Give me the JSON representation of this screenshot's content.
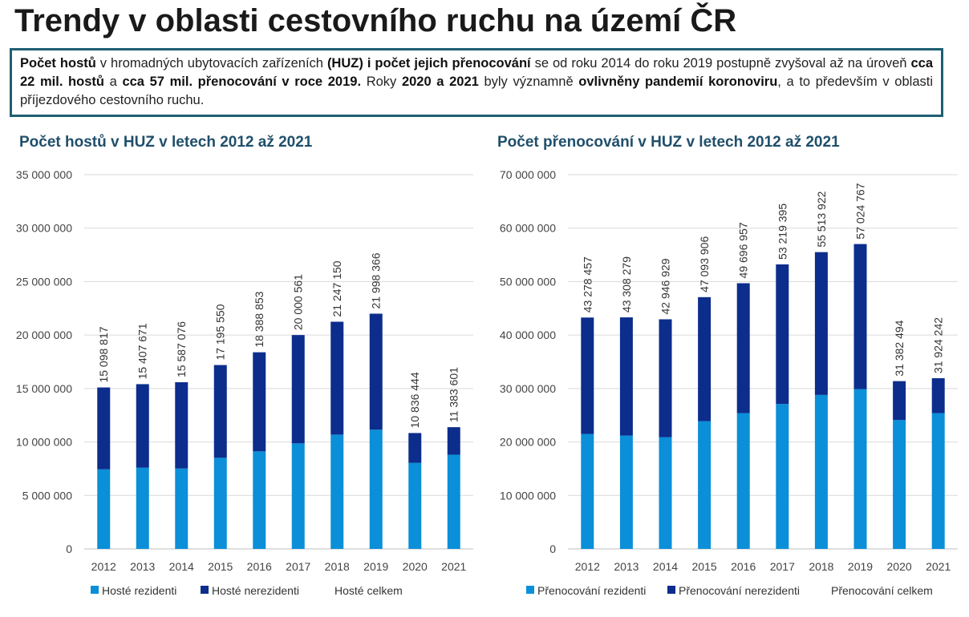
{
  "page": {
    "title": "Trendy v oblasti cestovního ruchu na území ČR",
    "info_segments": [
      {
        "t": "Počet hostů",
        "b": true
      },
      {
        "t": " v hromadných ubytovacích zařízeních ",
        "b": false
      },
      {
        "t": "(HUZ) i počet jejich přenocování",
        "b": true
      },
      {
        "t": " se od roku 2014 do roku 2019 postupně zvyšoval až na úroveň ",
        "b": false
      },
      {
        "t": "cca 22 mil. hostů",
        "b": true
      },
      {
        "t": " a ",
        "b": false
      },
      {
        "t": "cca 57 mil. přenocování v roce 2019.",
        "b": true
      },
      {
        "t": " Roky ",
        "b": false
      },
      {
        "t": "2020 a 2021",
        "b": true
      },
      {
        "t": " byly významně ",
        "b": false
      },
      {
        "t": "ovlivněny pandemií koronoviru",
        "b": true
      },
      {
        "t": ", a to především v oblasti příjezdového cestovního ruchu.",
        "b": false
      }
    ]
  },
  "colors": {
    "resident": "#0a8fd8",
    "nonresident": "#0c2d8c",
    "grid": "#d9d9d9",
    "axis": "#bfbfbf"
  },
  "chart_data": [
    {
      "type": "bar",
      "stacked": true,
      "title": "Počet hostů v HUZ v letech 2012 až 2021",
      "categories": [
        "2012",
        "2013",
        "2014",
        "2015",
        "2016",
        "2017",
        "2018",
        "2019",
        "2020",
        "2021"
      ],
      "series": [
        {
          "name": "Hosté rezidenti",
          "values": [
            7440000,
            7600000,
            7520000,
            8520000,
            9120000,
            9870000,
            10690000,
            11150000,
            8050000,
            8810000
          ]
        },
        {
          "name": "Hosté nerezidenti",
          "values": [
            7658817,
            7807671,
            8067076,
            8675550,
            9268853,
            10130561,
            10557150,
            10848366,
            2786444,
            2573601
          ]
        }
      ],
      "totals_name": "Hosté celkem",
      "totals": [
        15098817,
        15407671,
        15587076,
        17195550,
        18388853,
        20000561,
        21247150,
        21998366,
        10836444,
        11383601
      ],
      "total_labels": [
        "15 098 817",
        "15 407 671",
        "15 587 076",
        "17 195 550",
        "18 388 853",
        "20 000 561",
        "21 247 150",
        "21 998 366",
        "10 836 444",
        "11 383 601"
      ],
      "ylim": [
        0,
        35000000
      ],
      "yticks": [
        0,
        5000000,
        10000000,
        15000000,
        20000000,
        25000000,
        30000000,
        35000000
      ],
      "ytick_labels": [
        "0",
        "5 000 000",
        "10 000 000",
        "15 000 000",
        "20 000 000",
        "25 000 000",
        "30 000 000",
        "35 000 000"
      ],
      "legend": [
        "Hosté rezidenti",
        "Hosté nerezidenti",
        "Hosté celkem"
      ],
      "grid": true
    },
    {
      "type": "bar",
      "stacked": true,
      "title": "Počet přenocování v HUZ v letech 2012 až 2021",
      "categories": [
        "2012",
        "2013",
        "2014",
        "2015",
        "2016",
        "2017",
        "2018",
        "2019",
        "2020",
        "2021"
      ],
      "series": [
        {
          "name": "Přenocování rezidenti",
          "values": [
            21500000,
            21200000,
            20900000,
            23900000,
            25400000,
            27100000,
            28800000,
            29900000,
            24100000,
            25400000
          ]
        },
        {
          "name": "Přenocování nerezidenti",
          "values": [
            21778457,
            22108279,
            22046929,
            23193906,
            24296957,
            26119395,
            26713922,
            27124767,
            7282494,
            6524242
          ]
        }
      ],
      "totals_name": "Přenocování celkem",
      "totals": [
        43278457,
        43308279,
        42946929,
        47093906,
        49696957,
        53219395,
        55513922,
        57024767,
        31382494,
        31924242
      ],
      "total_labels": [
        "43 278 457",
        "43 308 279",
        "42 946 929",
        "47 093 906",
        "49 696 957",
        "53 219 395",
        "55 513 922",
        "57 024 767",
        "31 382 494",
        "31 924 242"
      ],
      "ylim": [
        0,
        70000000
      ],
      "yticks": [
        0,
        10000000,
        20000000,
        30000000,
        40000000,
        50000000,
        60000000,
        70000000
      ],
      "ytick_labels": [
        "0",
        "10 000 000",
        "20 000 000",
        "30 000 000",
        "40 000 000",
        "50 000 000",
        "60 000 000",
        "70 000 000"
      ],
      "legend": [
        "Přenocování rezidenti",
        "Přenocování nerezidenti",
        "Přenocování celkem"
      ],
      "grid": true
    }
  ]
}
